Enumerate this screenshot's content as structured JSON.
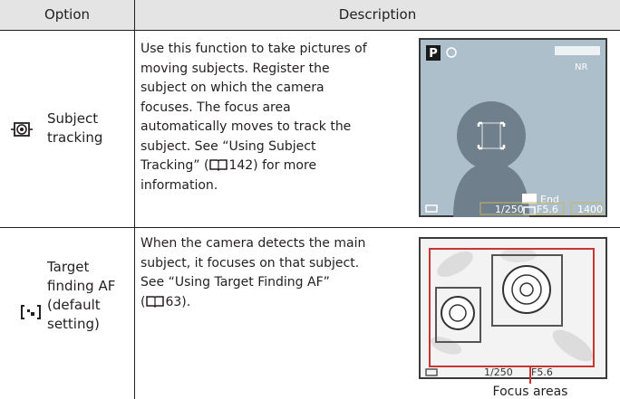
{
  "header": {
    "option": "Option",
    "description": "Description"
  },
  "rows": [
    {
      "option": [
        "Subject",
        "tracking"
      ],
      "description": [
        "Use this function to take pictures of",
        "moving subjects. Register the",
        "subject on which the camera",
        "focuses. The focus area",
        "automatically moves to track the",
        "subject. See “Using Subject",
        [
          "Tracking” (",
          "142) for more"
        ],
        "information."
      ],
      "screen": {
        "mode": "P",
        "nr": "NR",
        "end": "End",
        "shutter": "1/250",
        "aperture": "F5.6",
        "count": "1400"
      }
    },
    {
      "option": [
        "Target",
        "finding AF",
        "(default",
        "setting)"
      ],
      "description": [
        "When the camera detects the main",
        "subject, it focuses on that subject.",
        "See “Using Target Finding AF”",
        [
          "(",
          "63)."
        ]
      ],
      "screen": {
        "shutter": "1/250",
        "aperture": "F5.6"
      },
      "caption": "Focus areas"
    }
  ]
}
